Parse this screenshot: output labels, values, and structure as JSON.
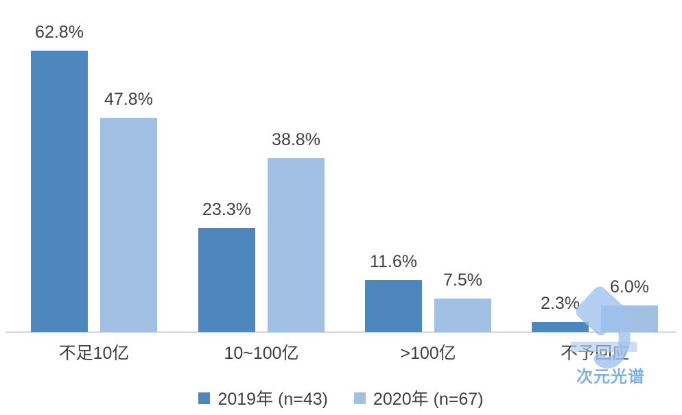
{
  "chart_data": {
    "type": "bar",
    "title": "",
    "xlabel": "",
    "ylabel": "",
    "categories": [
      "不足10亿",
      "10~100亿",
      ">100亿",
      "不予回应"
    ],
    "series": [
      {
        "name": "2019年 (n=43)",
        "color": "#4e87be",
        "values": [
          62.8,
          23.3,
          11.6,
          2.3
        ],
        "value_labels": [
          "62.8%",
          "23.3%",
          "11.6%",
          "2.3%"
        ]
      },
      {
        "name": "2020年 (n=67)",
        "color": "#a2bfe4",
        "values": [
          47.8,
          38.8,
          7.5,
          6.0
        ],
        "value_labels": [
          "47.8%",
          "38.8%",
          "7.5%",
          "6.0%"
        ]
      }
    ],
    "value_suffix": "%",
    "ylim": [
      0,
      70
    ],
    "grid": false,
    "legend_position": "bottom"
  },
  "watermark": {
    "text": "次元光谱",
    "text_color": "#7fb0e6",
    "logo_color": "#9fc2ee"
  },
  "colors": {
    "axis_line": "#d7d7d7",
    "label_text": "#404040",
    "background": "#ffffff"
  }
}
